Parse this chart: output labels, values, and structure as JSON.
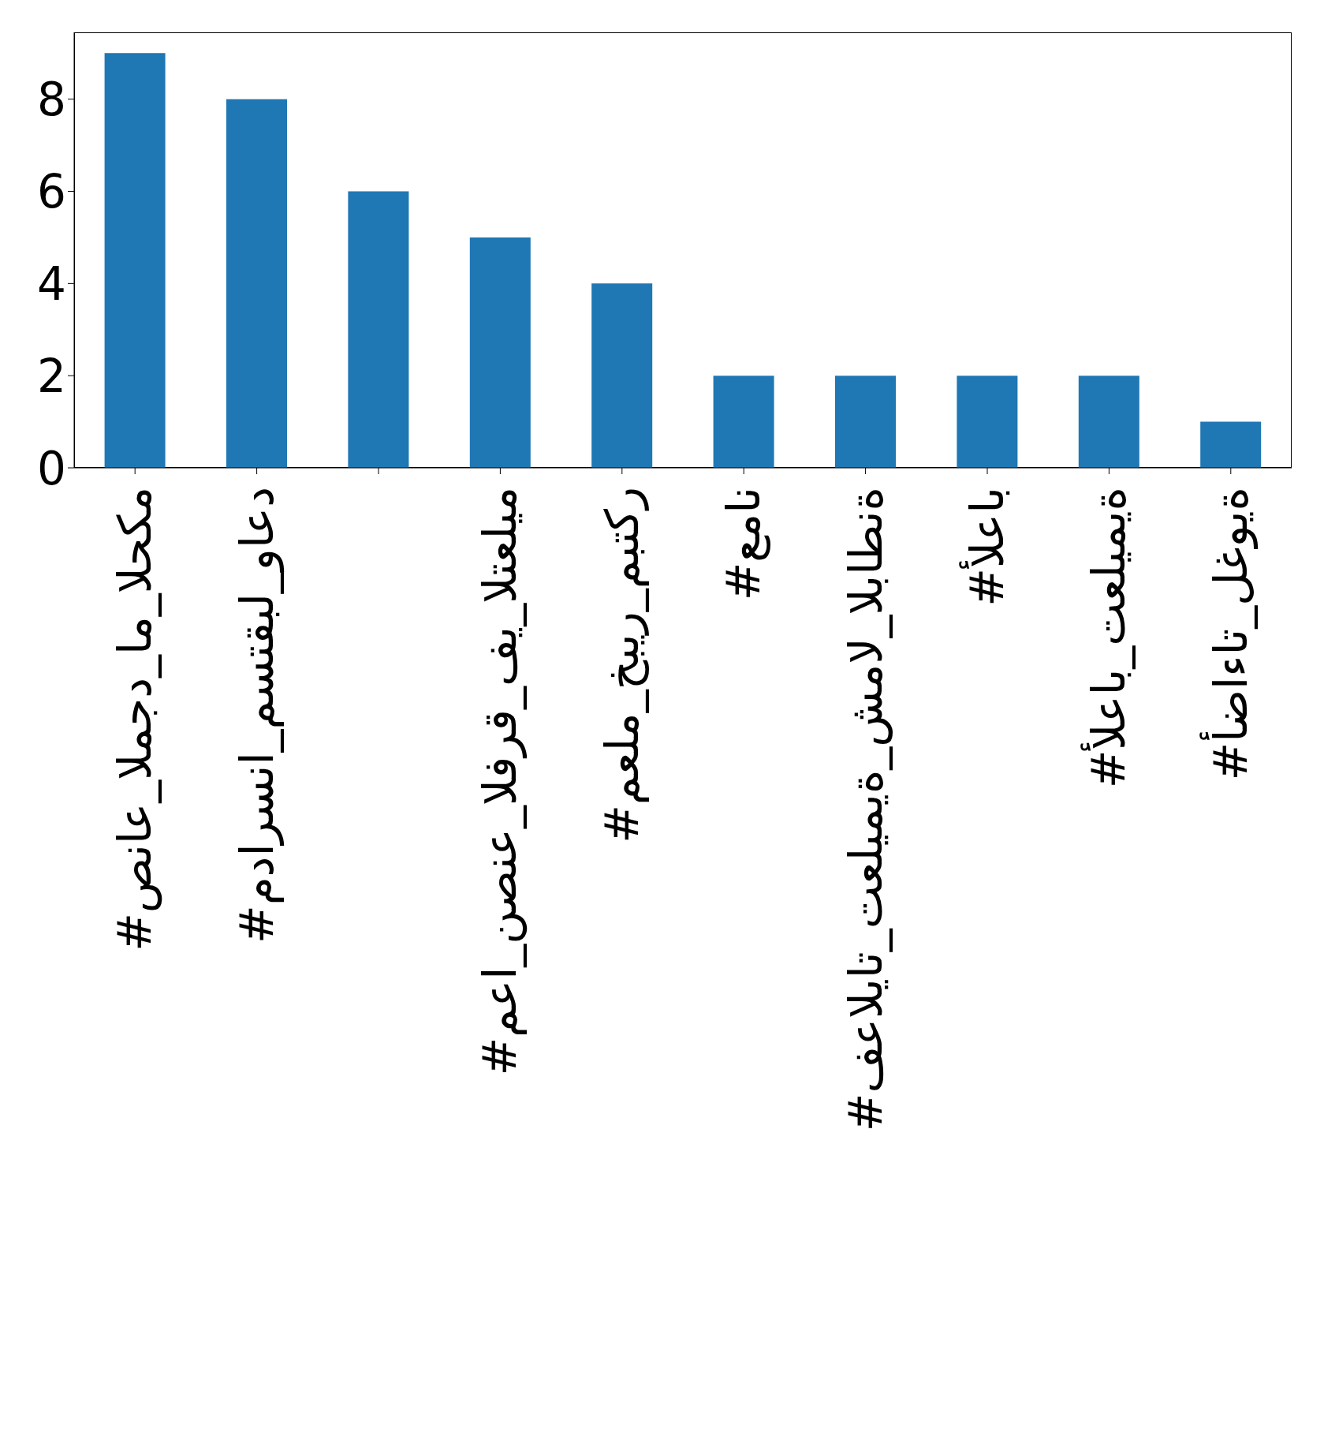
{
  "chart_data": {
    "type": "bar",
    "categories": [
      "#صناع_المجد_ام_الحكم",
      "#مدارسنا_مستقبل_واعد",
      null,
      "#معا_نصنع_الفرق_في_التعليم",
      "#معلم_خبير_مبتكر",
      "#عمان",
      "#فعاليات_تعليمية_شمال_الباطنة",
      "#ألعاب",
      "#ألعاب_تعليمية",
      "#أضاءات_لغوية"
    ],
    "values": [
      9,
      8,
      6,
      5,
      4,
      2,
      2,
      2,
      2,
      1
    ],
    "color": "#1f77b4",
    "ylim": [
      0,
      9.45
    ],
    "yticks": [
      0,
      2,
      4,
      6,
      8
    ]
  }
}
